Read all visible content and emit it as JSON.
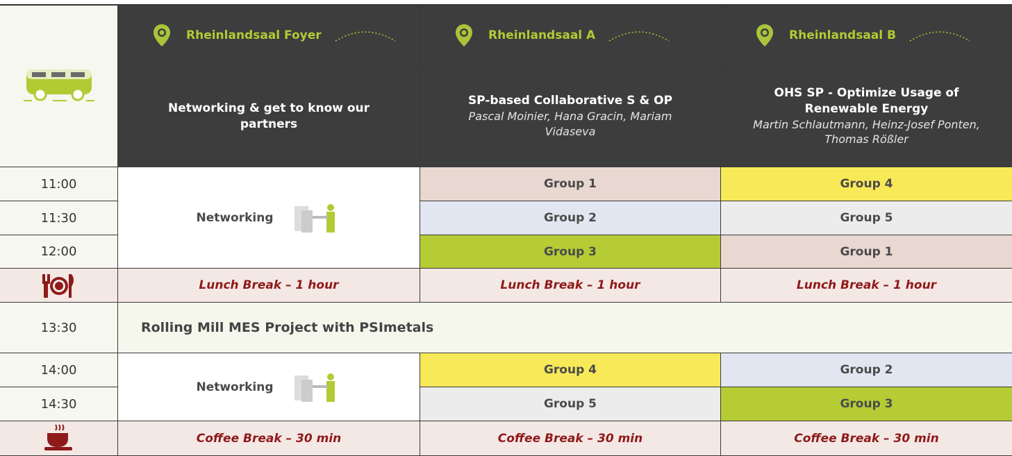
{
  "rooms": [
    "Rheinlandsaal Foyer",
    "Rheinlandsaal A",
    "Rheinlandsaal B"
  ],
  "sessions": [
    {
      "title": "Networking & get to know our partners"
    },
    {
      "title": "SP-based Collaborative S & OP",
      "speakers": "Pascal Moinier, Hana Gracin, Mariam Vidaseva"
    },
    {
      "title": "OHS SP - Optimize Usage of Renewable Energy",
      "speakers": "Martin Schlautmann, Heinz-Josef Ponten, Thomas Rößler"
    }
  ],
  "slots": [
    {
      "time": "11:00",
      "room_a": "Group 1",
      "room_b": "Group 4"
    },
    {
      "time": "11:30",
      "room_a": "Group 2",
      "room_b": "Group 5"
    },
    {
      "time": "12:00",
      "room_a": "Group 3",
      "room_b": "Group 1"
    },
    {
      "time": "14:00",
      "room_a": "Group 4",
      "room_b": "Group 2"
    },
    {
      "time": "14:30",
      "room_a": "Group 5",
      "room_b": "Group 3"
    }
  ],
  "networking": [
    "Networking",
    "Networking"
  ],
  "lunch": [
    "Lunch Break – 1 hour",
    "Lunch Break – 1 hour",
    "Lunch Break – 1 hour"
  ],
  "plenary": {
    "time": "13:30",
    "title": "Rolling Mill MES Project with PSImetals"
  },
  "coffee": [
    "Coffee Break – 30 min",
    "Coffee Break – 30 min",
    "Coffee Break – 30 min"
  ]
}
